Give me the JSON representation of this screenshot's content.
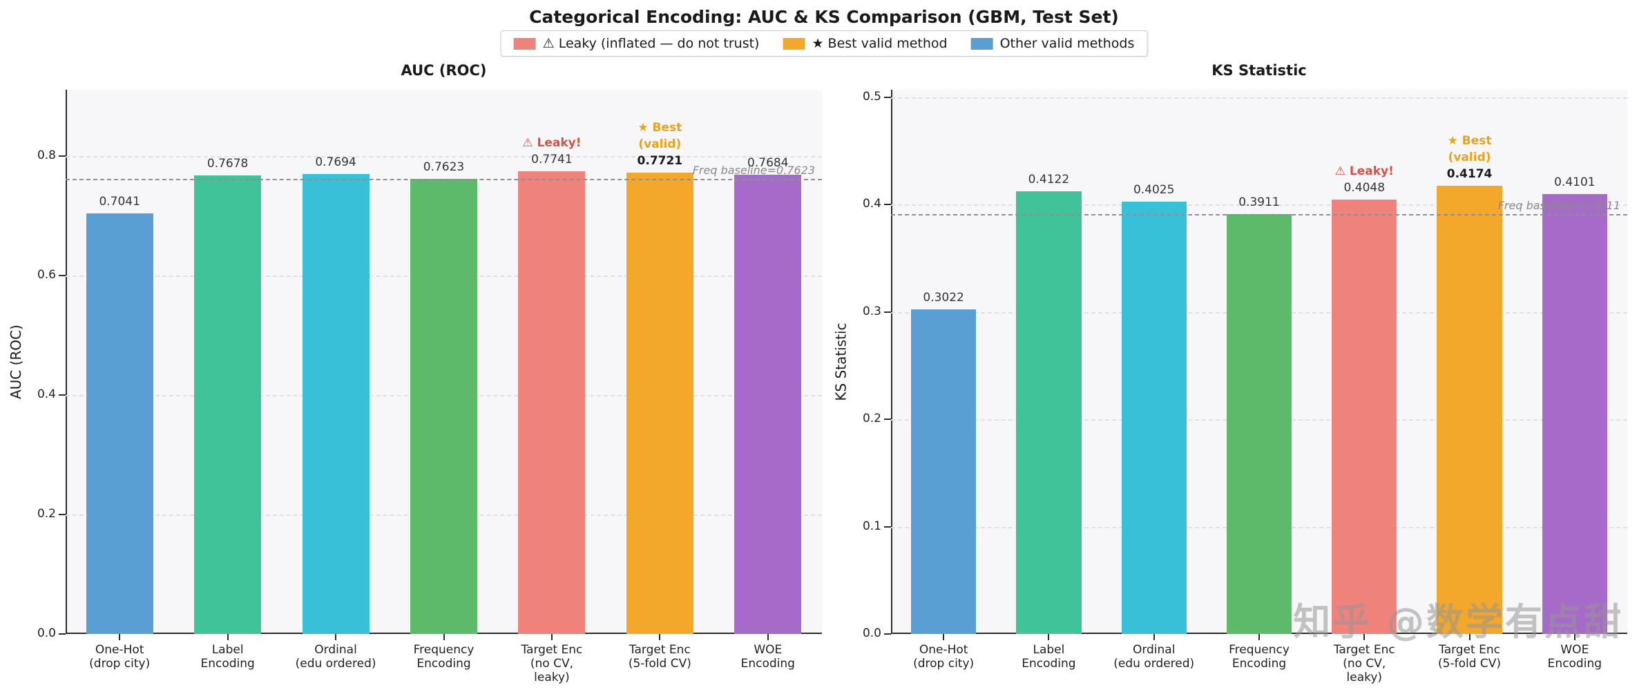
{
  "title": "Categorical Encoding: AUC & KS Comparison (GBM, Test Set)",
  "legend": {
    "items": [
      {
        "label": "⚠ Leaky (inflated — do not trust)",
        "color": "#EF837B"
      },
      {
        "label": "★ Best valid method",
        "color": "#F3A72B"
      },
      {
        "label": "Other valid methods",
        "color": "#5A9FD4"
      }
    ]
  },
  "watermark": "知乎 @数学有点甜",
  "chart_data": [
    {
      "type": "bar",
      "title": "AUC (ROC)",
      "ylabel": "AUC (ROC)",
      "categories": [
        "One-Hot\n(drop city)",
        "Label\nEncoding",
        "Ordinal\n(edu ordered)",
        "Frequency\nEncoding",
        "Target Enc\n(no CV,\nleaky)",
        "Target Enc\n(5-fold CV)",
        "WOE\nEncoding"
      ],
      "values": [
        0.7041,
        0.7678,
        0.7694,
        0.7623,
        0.7741,
        0.7721,
        0.7684
      ],
      "value_labels": [
        "0.7041",
        "0.7678",
        "0.7694",
        "0.7623",
        "0.7741",
        "0.7721",
        "0.7684"
      ],
      "bar_colors": [
        "#5A9FD4",
        "#41C39A",
        "#38C0D8",
        "#5BBB6A",
        "#EF837B",
        "#F3A72B",
        "#A66BC8"
      ],
      "yticks": [
        0.0,
        0.2,
        0.4,
        0.6,
        0.8
      ],
      "ylim": [
        0,
        0.911
      ],
      "grid": true,
      "legend_position": "top-center-figure",
      "baseline": {
        "value": 0.7623,
        "label": "Freq baseline=0.7623"
      },
      "annotations": [
        {
          "bar_index": 4,
          "lines": [
            "⚠ Leaky!"
          ],
          "color": "#d94f43"
        },
        {
          "bar_index": 5,
          "lines": [
            "★ Best",
            "(valid)"
          ],
          "color": "#e8a21c"
        }
      ],
      "best_value_index": 5
    },
    {
      "type": "bar",
      "title": "KS Statistic",
      "ylabel": "KS Statistic",
      "categories": [
        "One-Hot\n(drop city)",
        "Label\nEncoding",
        "Ordinal\n(edu ordered)",
        "Frequency\nEncoding",
        "Target Enc\n(no CV,\nleaky)",
        "Target Enc\n(5-fold CV)",
        "WOE\nEncoding"
      ],
      "values": [
        0.3022,
        0.4122,
        0.4025,
        0.3911,
        0.4048,
        0.4174,
        0.4101
      ],
      "value_labels": [
        "0.3022",
        "0.4122",
        "0.4025",
        "0.3911",
        "0.4048",
        "0.4174",
        "0.4101"
      ],
      "bar_colors": [
        "#5A9FD4",
        "#41C39A",
        "#38C0D8",
        "#5BBB6A",
        "#EF837B",
        "#F3A72B",
        "#A66BC8"
      ],
      "yticks": [
        0.0,
        0.1,
        0.2,
        0.3,
        0.4,
        0.5
      ],
      "ylim": [
        0,
        0.507
      ],
      "grid": true,
      "legend_position": "top-center-figure",
      "baseline": {
        "value": 0.3911,
        "label": "Freq baseline=0.3911"
      },
      "annotations": [
        {
          "bar_index": 4,
          "lines": [
            "⚠ Leaky!"
          ],
          "color": "#d94f43"
        },
        {
          "bar_index": 5,
          "lines": [
            "★ Best",
            "(valid)"
          ],
          "color": "#e8a21c"
        }
      ],
      "best_value_index": 5
    }
  ]
}
